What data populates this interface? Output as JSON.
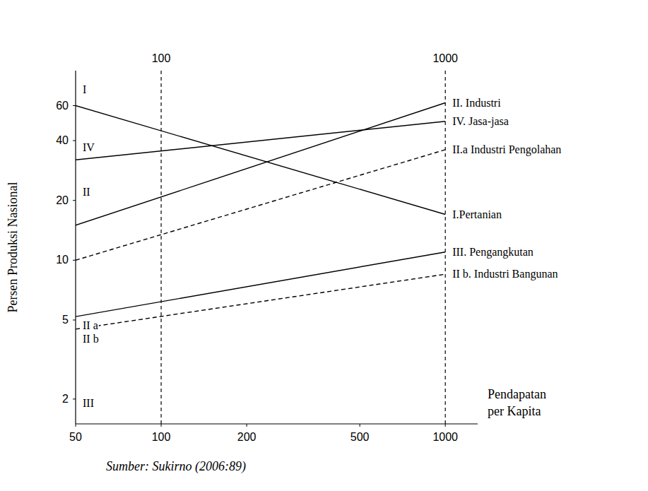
{
  "chart_data": {
    "type": "line",
    "x_label": "Pendapatan per Kapita",
    "y_label": "Persen Produksi Nasional",
    "source": "Sumber: Sukirno (2006:89)",
    "log": true,
    "grid": false,
    "x": [
      50,
      1000
    ],
    "xlim": [
      50,
      1300
    ],
    "xticks": [
      50,
      100,
      200,
      500,
      1000
    ],
    "ylim": [
      1.5,
      90
    ],
    "yticks": [
      2,
      5,
      10,
      20,
      40,
      60
    ],
    "vlines": [
      100,
      1000
    ],
    "series": [
      {
        "name": "II. Industri",
        "color": "#000000",
        "line_style": "solid",
        "values": [
          15,
          62
        ]
      },
      {
        "name": "IV. Jasa-jasa",
        "color": "#000000",
        "line_style": "solid",
        "values": [
          32,
          50
        ]
      },
      {
        "name": "II.a Industri Pengolahan",
        "color": "#000000",
        "line_style": "dashed",
        "values": [
          10,
          36
        ]
      },
      {
        "name": "I.Pertanian",
        "color": "#000000",
        "line_style": "solid",
        "values": [
          60,
          17
        ]
      },
      {
        "name": "III. Pengangkutan",
        "color": "#000000",
        "line_style": "solid",
        "values": [
          5.2,
          11
        ]
      },
      {
        "name": "II b. Industri Bangunan",
        "color": "#000000",
        "line_style": "dashed",
        "values": [
          4.5,
          8.5
        ]
      }
    ],
    "annotations": [
      {
        "text": "I",
        "x": 50,
        "y": 72
      },
      {
        "text": "IV",
        "x": 50,
        "y": 37
      },
      {
        "text": "II",
        "x": 50,
        "y": 22
      },
      {
        "text": "II a",
        "x": 50,
        "y": 4.7
      },
      {
        "text": "II b",
        "x": 50,
        "y": 4.0
      },
      {
        "text": "III",
        "x": 50,
        "y": 1.9
      }
    ]
  }
}
